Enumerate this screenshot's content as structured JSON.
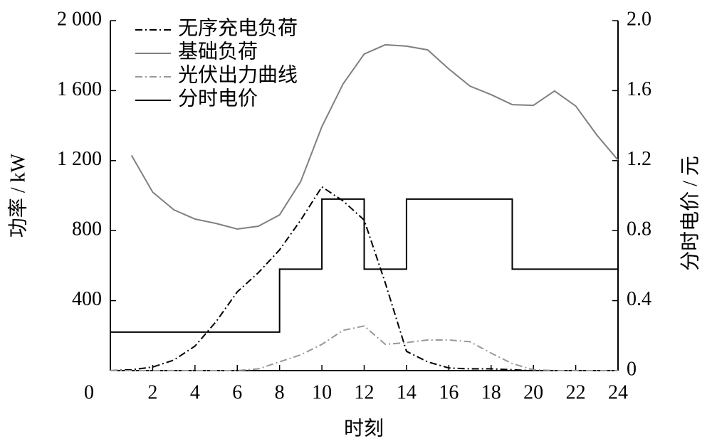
{
  "chart_data": {
    "type": "line",
    "xlabel": "时刻",
    "ylabel": "功率 / kW",
    "y2label": "分时电价 / 元",
    "xlim": [
      0,
      24
    ],
    "xticks": [
      0,
      2,
      4,
      6,
      8,
      10,
      12,
      14,
      16,
      18,
      20,
      22,
      24
    ],
    "ylim": [
      0,
      2000
    ],
    "yticks": [
      400,
      800,
      {
        "value": 1200,
        "label": "1 200"
      },
      {
        "value": 1600,
        "label": "1 600"
      },
      {
        "value": 2000,
        "label": "2 000"
      }
    ],
    "y2lim": [
      0,
      2
    ],
    "y2ticks": [
      0,
      0.4,
      0.8,
      1.2,
      1.6,
      {
        "value": 2,
        "label": "2.0"
      }
    ],
    "legend": "upper left",
    "series": [
      {
        "name": "无序充电负荷",
        "color": "#000000",
        "linestyle": "dashdot",
        "x": [
          0,
          1,
          2,
          3,
          4,
          5,
          6,
          7,
          8,
          9,
          10,
          11,
          12,
          13,
          14,
          15,
          16,
          17,
          18,
          19,
          20,
          21,
          22,
          23,
          24
        ],
        "values": [
          0,
          5,
          20,
          60,
          140,
          280,
          450,
          560,
          690,
          860,
          1050,
          970,
          860,
          500,
          110,
          50,
          15,
          10,
          10,
          5,
          0,
          0,
          0,
          0,
          0
        ]
      },
      {
        "name": "基础负荷",
        "color": "#808080",
        "linestyle": "solid",
        "x": [
          1,
          2,
          3,
          4,
          5,
          6,
          7,
          8,
          9,
          10,
          11,
          12,
          13,
          14,
          15,
          16,
          17,
          18,
          19,
          20,
          21,
          22,
          23,
          24
        ],
        "values": [
          1230,
          1020,
          919,
          866,
          841,
          809,
          825,
          890,
          1081,
          1394,
          1638,
          1809,
          1862,
          1854,
          1833,
          1724,
          1626,
          1577,
          1520,
          1516,
          1598,
          1512,
          1346,
          1203
        ]
      },
      {
        "name": "光伏出力曲线",
        "color": "#999999",
        "linestyle": "dashdot",
        "x": [
          0,
          1,
          2,
          3,
          4,
          5,
          6,
          7,
          8,
          9,
          10,
          11,
          12,
          13,
          14,
          15,
          16,
          17,
          18,
          19,
          20,
          21,
          22,
          23,
          24
        ],
        "values": [
          0,
          0,
          0,
          0,
          0,
          0,
          0,
          10,
          50,
          90,
          150,
          230,
          255,
          150,
          160,
          175,
          175,
          165,
          100,
          40,
          5,
          0,
          0,
          0,
          0
        ]
      },
      {
        "name": "分时电价",
        "color": "#000000",
        "linestyle": "solid",
        "axis": "y2",
        "step": "post",
        "x": [
          0,
          8,
          10,
          12,
          14,
          19,
          24
        ],
        "values": [
          0.22,
          0.58,
          0.98,
          0.58,
          0.98,
          0.58,
          0.58
        ]
      }
    ]
  }
}
